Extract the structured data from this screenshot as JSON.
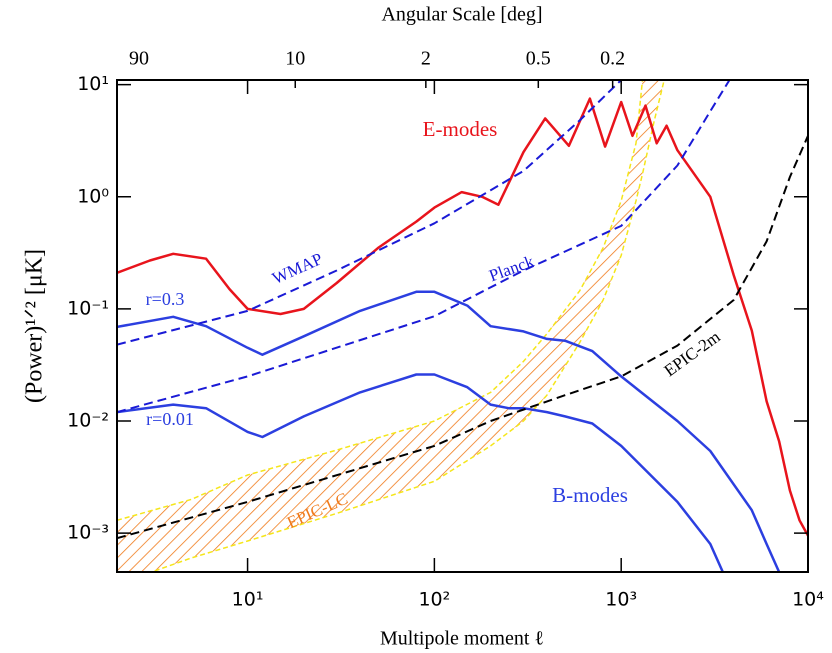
{
  "chart_data": {
    "type": "line",
    "xlabel": "Multipole moment ℓ",
    "ylabel": "(Power)¹ᐟ² [μK]",
    "x2label": "Angular Scale [deg]",
    "log_x": true,
    "log_y": true,
    "xlim": [
      2,
      10000
    ],
    "ylim": [
      0.00045,
      11
    ],
    "xticks": [
      {
        "value": 10,
        "label": "10¹"
      },
      {
        "value": 100,
        "label": "10²"
      },
      {
        "value": 1000,
        "label": "10³"
      },
      {
        "value": 10000,
        "label": "10⁴"
      }
    ],
    "yticks": [
      {
        "value": 0.001,
        "label": "10⁻³"
      },
      {
        "value": 0.01,
        "label": "10⁻²"
      },
      {
        "value": 0.1,
        "label": "10⁻¹"
      },
      {
        "value": 1,
        "label": "10⁰"
      },
      {
        "value": 10,
        "label": "10¹"
      }
    ],
    "x2ticks": [
      90,
      10,
      2,
      0.5,
      0.2
    ],
    "series": [
      {
        "name": "E-modes",
        "color": "#e8141c",
        "dash": false,
        "x": [
          2,
          3,
          4,
          6,
          8,
          10,
          15,
          20,
          30,
          50,
          80,
          100,
          140,
          180,
          220,
          300,
          392,
          525,
          680,
          820,
          1000,
          1150,
          1350,
          1550,
          1750,
          2000,
          3000,
          4000,
          5000,
          6000,
          7000,
          8000,
          9000,
          10000
        ],
        "values": [
          0.21,
          0.27,
          0.31,
          0.28,
          0.15,
          0.1,
          0.09,
          0.1,
          0.17,
          0.35,
          0.6,
          0.8,
          1.1,
          1.0,
          0.85,
          2.5,
          5,
          2.85,
          7.5,
          2.8,
          7,
          3.5,
          6.5,
          3,
          4.3,
          2.6,
          1.0,
          0.2,
          0.064,
          0.015,
          0.0066,
          0.0024,
          0.0013,
          0.00095
        ]
      },
      {
        "name": "r=0.3",
        "color": "#2c3fe0",
        "dash": false,
        "x": [
          2,
          4,
          6,
          10,
          12,
          20,
          40,
          80,
          100,
          150,
          200,
          300,
          400,
          500,
          700,
          1000,
          2000,
          3000,
          5000,
          6000,
          7000
        ],
        "values": [
          0.069,
          0.085,
          0.07,
          0.045,
          0.039,
          0.057,
          0.096,
          0.142,
          0.142,
          0.107,
          0.07,
          0.063,
          0.054,
          0.052,
          0.042,
          0.025,
          0.01,
          0.0054,
          0.0016,
          0.0008,
          0.00045
        ]
      },
      {
        "name": "r=0.01",
        "color": "#2c3fe0",
        "dash": false,
        "x": [
          2,
          4,
          6,
          10,
          12,
          20,
          40,
          80,
          100,
          150,
          200,
          250,
          300,
          400,
          500,
          700,
          1000,
          2000,
          3000,
          3500
        ],
        "values": [
          0.012,
          0.014,
          0.013,
          0.008,
          0.0072,
          0.011,
          0.018,
          0.026,
          0.026,
          0.02,
          0.014,
          0.013,
          0.013,
          0.012,
          0.011,
          0.0095,
          0.006,
          0.0019,
          0.0008,
          0.00045
        ]
      },
      {
        "name": "WMAP",
        "color": "#1a1ad6",
        "dash": true,
        "x": [
          2,
          10,
          30,
          100,
          300,
          600,
          1000
        ],
        "values": [
          0.048,
          0.096,
          0.22,
          0.58,
          1.7,
          4.8,
          11
        ]
      },
      {
        "name": "Planck",
        "color": "#1a1ad6",
        "dash": true,
        "x": [
          2,
          10,
          100,
          300,
          1000,
          2000,
          3000,
          3800
        ],
        "values": [
          0.012,
          0.025,
          0.086,
          0.22,
          0.55,
          1.9,
          5.8,
          11
        ]
      },
      {
        "name": "EPIC-2m",
        "color": "#000000",
        "dash": true,
        "x": [
          200,
          500,
          1000,
          2000,
          4000,
          6000,
          8000,
          10000
        ],
        "values": [
          0.01,
          0.017,
          0.025,
          0.047,
          0.12,
          0.4,
          1.5,
          3.5
        ]
      },
      {
        "name": "EPIC-LC",
        "color": "#000000",
        "label_color": "#f07a1a",
        "dash": true,
        "x": [
          2,
          10,
          100,
          200
        ],
        "values": [
          0.0009,
          0.0019,
          0.006,
          0.01
        ]
      }
    ],
    "band": {
      "color": "#f07a1a",
      "edge_color": "#f5e61a",
      "upper": {
        "x": [
          2,
          5,
          10,
          30,
          100,
          200,
          300,
          400,
          600,
          800,
          1000,
          1200,
          1300
        ],
        "values": [
          0.0013,
          0.002,
          0.0033,
          0.0055,
          0.01,
          0.018,
          0.034,
          0.06,
          0.145,
          0.35,
          0.92,
          3,
          11
        ]
      },
      "lower": {
        "x": [
          2,
          5,
          10,
          30,
          100,
          200,
          300,
          400,
          600,
          800,
          1000,
          1200,
          1300,
          1500,
          1700
        ],
        "values": [
          0.00035,
          0.0006,
          0.00085,
          0.0015,
          0.0029,
          0.006,
          0.01,
          0.017,
          0.05,
          0.12,
          0.3,
          0.92,
          1.6,
          4.7,
          11
        ]
      }
    },
    "annotations": [
      {
        "text": "B-modes",
        "color": "#2c3fe0"
      }
    ]
  }
}
